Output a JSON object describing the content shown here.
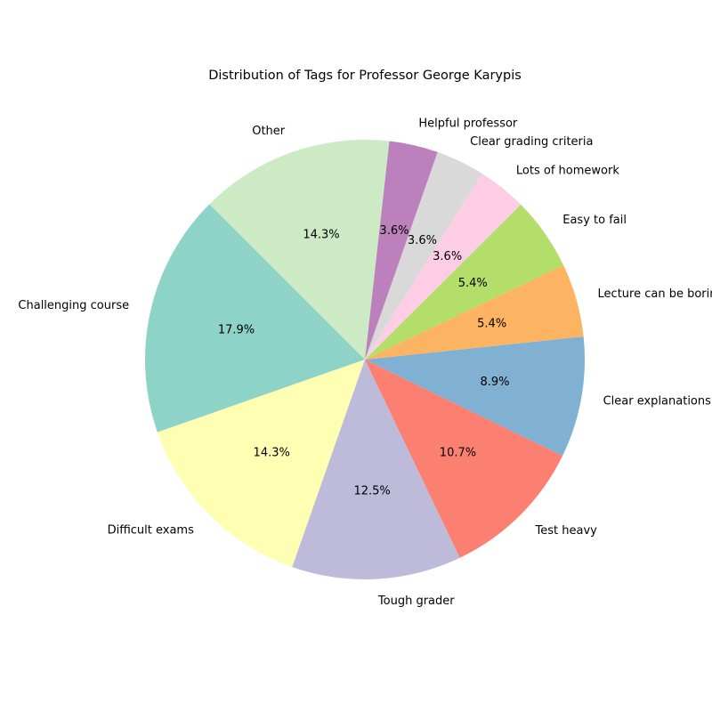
{
  "chart_data": {
    "type": "pie",
    "title": "Distribution of Tags for Professor George Karypis",
    "legend": "none",
    "start_angle_deg": 135,
    "direction": "counterclockwise",
    "slices": [
      {
        "label": "Challenging course",
        "value": 17.9,
        "pct_label": "17.9%",
        "color": "#8dd3c7"
      },
      {
        "label": "Difficult exams",
        "value": 14.3,
        "pct_label": "14.3%",
        "color": "#ffffb3"
      },
      {
        "label": "Tough grader",
        "value": 12.5,
        "pct_label": "12.5%",
        "color": "#bebada"
      },
      {
        "label": "Test heavy",
        "value": 10.7,
        "pct_label": "10.7%",
        "color": "#fb8072"
      },
      {
        "label": "Clear explanations",
        "value": 8.9,
        "pct_label": "8.9%",
        "color": "#80b1d3"
      },
      {
        "label": "Lecture can be boring",
        "value": 5.4,
        "pct_label": "5.4%",
        "color": "#fdb462"
      },
      {
        "label": "Easy to fail",
        "value": 5.4,
        "pct_label": "5.4%",
        "color": "#b3de69"
      },
      {
        "label": "Lots of homework",
        "value": 3.6,
        "pct_label": "3.6%",
        "color": "#fccde5"
      },
      {
        "label": "Clear grading criteria",
        "value": 3.6,
        "pct_label": "3.6%",
        "color": "#d9d9d9"
      },
      {
        "label": "Helpful professor",
        "value": 3.6,
        "pct_label": "3.6%",
        "color": "#bc80bd"
      },
      {
        "label": "Other",
        "value": 14.3,
        "pct_label": "14.3%",
        "color": "#ccebc5"
      }
    ]
  }
}
